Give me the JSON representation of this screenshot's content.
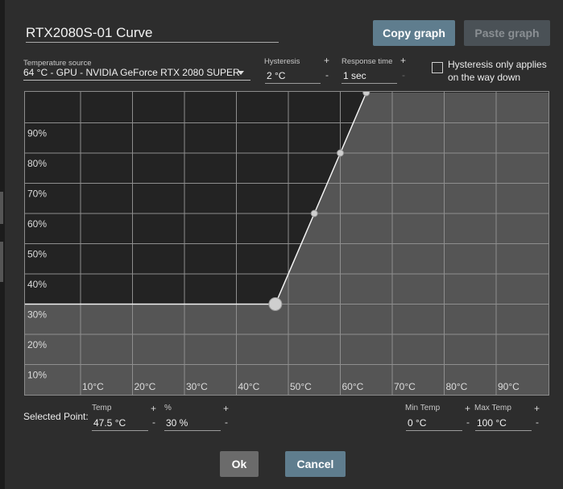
{
  "title": "RTX2080S-01 Curve",
  "buttons": {
    "copy": "Copy graph",
    "paste": "Paste graph",
    "ok": "Ok",
    "cancel": "Cancel"
  },
  "temperature_source": {
    "label": "Temperature source",
    "value": "64 °C - GPU - NVIDIA GeForce RTX 2080 SUPER"
  },
  "hysteresis": {
    "label": "Hysteresis",
    "value": "2 °C",
    "plus": "+",
    "minus": "-"
  },
  "response_time": {
    "label": "Response time",
    "value": "1 sec",
    "plus": "+",
    "minus": "-"
  },
  "hysteresis_down": {
    "checked": false,
    "text_line1": "Hysteresis only applies",
    "text_line2": "on the way down"
  },
  "selected_point": {
    "label": "Selected Point:",
    "temp_label": "Temp",
    "temp_value": "47.5 °C",
    "pct_label": "%",
    "pct_value": "30 %",
    "plus": "+",
    "minus": "-"
  },
  "min_temp": {
    "label": "Min Temp",
    "value": "0 °C",
    "plus": "+",
    "minus": "-"
  },
  "max_temp": {
    "label": "Max Temp",
    "value": "100 °C",
    "plus": "+",
    "minus": "-"
  },
  "chart_data": {
    "type": "line",
    "x_ticks": [
      "10°C",
      "20°C",
      "30°C",
      "40°C",
      "50°C",
      "60°C",
      "70°C",
      "80°C",
      "90°C"
    ],
    "y_ticks": [
      "10%",
      "20%",
      "30%",
      "40%",
      "50%",
      "60%",
      "70%",
      "80%",
      "90%"
    ],
    "xlim": [
      0,
      100
    ],
    "ylim": [
      0,
      100
    ],
    "points": [
      {
        "x": 47.5,
        "y": 30,
        "selected": true
      },
      {
        "x": 55,
        "y": 60
      },
      {
        "x": 60,
        "y": 80
      },
      {
        "x": 65,
        "y": 100
      }
    ],
    "grid": true,
    "colors": {
      "plot_bg": "#232323",
      "fill": "#555555",
      "grid": "#8e8e8e",
      "line": "#f2f2f2",
      "point": "#cfcfcf"
    }
  }
}
